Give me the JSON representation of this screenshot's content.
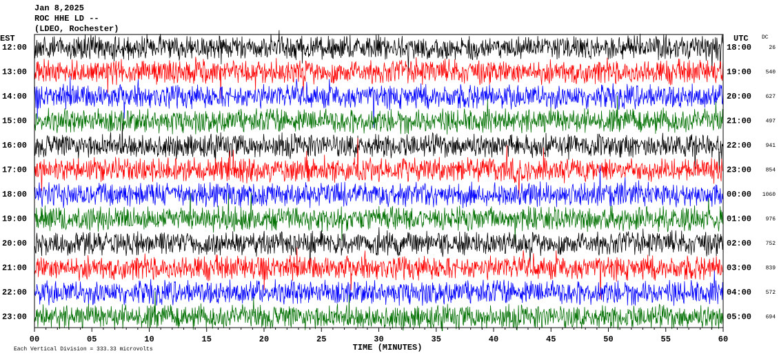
{
  "header": {
    "date": "Jan 8,2025",
    "station": "ROC HHE LD --",
    "network": "(LDEO, Rochester)"
  },
  "left_axis": {
    "title": "EST",
    "labels": [
      "12:00",
      "13:00",
      "14:00",
      "15:00",
      "16:00",
      "17:00",
      "18:00",
      "19:00",
      "20:00",
      "21:00",
      "22:00",
      "23:00"
    ]
  },
  "right_axis": {
    "title": "UTC",
    "labels": [
      "18:00",
      "19:00",
      "20:00",
      "21:00",
      "22:00",
      "23:00",
      "00:00",
      "01:00",
      "02:00",
      "03:00",
      "04:00",
      "05:00"
    ]
  },
  "dc": {
    "title": "DC",
    "values": [
      "26",
      "540",
      "627",
      "497",
      "941",
      "854",
      "1060",
      "976",
      "752",
      "839",
      "572",
      "694"
    ]
  },
  "x_axis": {
    "title": "TIME (MINUTES)",
    "labels": [
      "00",
      "05",
      "10",
      "15",
      "20",
      "25",
      "30",
      "35",
      "40",
      "45",
      "50",
      "55",
      "60"
    ]
  },
  "footer": {
    "scale_note": "Each Vertical Division =  333.33 microvolts"
  },
  "trace_colors": [
    "#000000",
    "#ff0000",
    "#0000ff",
    "#007000"
  ]
}
